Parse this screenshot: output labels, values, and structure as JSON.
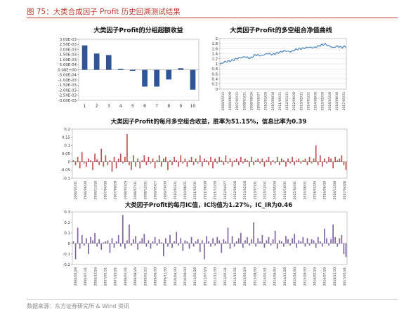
{
  "page": {
    "figure_title": "图 75：大类合成因子 Profit 历史回溯测试结果",
    "source": "数据来源：东方证券研究所 & Wind 资讯"
  },
  "colors": {
    "accent": "#c0392b",
    "bar_blue": "#2f5597",
    "line_blue": "#4a86c5",
    "bar_red": "#c0504d",
    "bar_purple": "#8064a2"
  },
  "chart_data": [
    {
      "id": "decile",
      "type": "bar",
      "title": "大类因子Profit的分组超额收益",
      "categories": [
        "1",
        "2",
        "3",
        "4",
        "5",
        "6",
        "7",
        "8",
        "9",
        "10"
      ],
      "values": [
        0.0024,
        0.0016,
        0.00145,
        0.0001,
        -0.0001,
        -0.00165,
        -0.00165,
        -0.00095,
        0.00015,
        -0.00195
      ],
      "ylim": [
        -0.003,
        0.003
      ],
      "yticks": [
        "3.00E-03",
        "2.50E-03",
        "2.00E-03",
        "1.50E-03",
        "1.00E-03",
        "5.00E-04",
        "0.00E+00",
        "-5.00E-04",
        "-1.00E-03",
        "-1.50E-03",
        "-2.00E-03",
        "-2.50E-03",
        "-3.00E-03"
      ],
      "grid": false
    },
    {
      "id": "nav",
      "type": "line",
      "title": "大类因子Profit的多空组合净值曲线",
      "ylim": [
        0,
        2
      ],
      "yticks": [
        "2",
        "1.8",
        "1.6",
        "1.4",
        "1.2",
        "1",
        "0.8",
        "0.6",
        "0.4",
        "0.2",
        "0"
      ],
      "xticks": [
        "2006/01/31",
        "2006/09/29",
        "2007/05/31",
        "2008/01/31",
        "2008/09/26",
        "2009/05/27",
        "2010/01/29",
        "2010/09/30",
        "2011/05/31",
        "2012/01/31",
        "2012/09/28",
        "2013/05/31",
        "2014/01/31",
        "2014/09/30",
        "2015/05/29",
        "2016/01/29",
        "2016/09/30",
        "2017/05/31"
      ],
      "anchors": [
        [
          0,
          0.99
        ],
        [
          5,
          1.08
        ],
        [
          12,
          1.13
        ],
        [
          18,
          1.23
        ],
        [
          25,
          1.28
        ],
        [
          30,
          1.22
        ],
        [
          35,
          1.36
        ],
        [
          41,
          1.32
        ],
        [
          47,
          1.41
        ],
        [
          52,
          1.37
        ],
        [
          58,
          1.45
        ],
        [
          64,
          1.52
        ],
        [
          70,
          1.48
        ],
        [
          76,
          1.58
        ],
        [
          82,
          1.61
        ],
        [
          88,
          1.66
        ],
        [
          93,
          1.64
        ],
        [
          99,
          1.73
        ],
        [
          104,
          1.78
        ],
        [
          108,
          1.71
        ],
        [
          112,
          1.64
        ],
        [
          116,
          1.7
        ],
        [
          120,
          1.66
        ],
        [
          125,
          1.69
        ]
      ],
      "grid": true
    },
    {
      "id": "monthly",
      "type": "bar",
      "title": "大类因子Profit的每月多空组合收益，胜率为51.15%，信息比率为0.39",
      "ylim": [
        -0.1,
        0.2
      ],
      "yticks": [
        "0.2",
        "0.15",
        "0.1",
        "0.05",
        "0",
        "-0.05",
        "-0.1"
      ],
      "values": [
        0.01,
        -0.02,
        0.03,
        -0.04,
        0.06,
        -0.01,
        -0.03,
        0.02,
        0.01,
        -0.05,
        0.05,
        0.015,
        -0.02,
        0.08,
        -0.03,
        0.04,
        -0.02,
        0.01,
        -0.06,
        0.03,
        -0.04,
        0.02,
        0.05,
        -0.01,
        0.03,
        0.17,
        -0.02,
        -0.05,
        0.04,
        -0.03,
        0.02,
        -0.04,
        0.01,
        0.04,
        -0.02,
        0.03,
        -0.01,
        0.02,
        -0.04,
        0.01,
        0.04,
        -0.03,
        0.02,
        0.03,
        -0.05,
        0.01,
        -0.02,
        0.03,
        0.01,
        -0.03,
        0.04,
        -0.01,
        0.02,
        -0.03,
        0.01,
        0.03,
        -0.02,
        0.02,
        -0.01,
        0.04,
        -0.03,
        0.02,
        0.01,
        -0.02,
        0.03,
        -0.04,
        0.02,
        -0.01,
        0.03,
        0.01,
        -0.02,
        0.04,
        -0.01,
        0.02,
        -0.03,
        0.01,
        0.02,
        -0.02,
        0.03,
        -0.01,
        0.02,
        0.01,
        -0.03,
        0.03,
        -0.02,
        0.01,
        0.02,
        -0.01,
        0.02,
        -0.03,
        0.01,
        0.03,
        -0.02,
        0.01,
        -0.01,
        0.03,
        -0.02,
        0.02,
        0.01,
        -0.03,
        0.02,
        -0.01,
        0.03,
        -0.02,
        0.01,
        0.02,
        -0.01,
        0.01,
        0.02,
        -0.02,
        0.03,
        -0.01,
        0.02,
        0.1,
        -0.02,
        0.04,
        -0.03,
        0.02,
        -0.01,
        0.03,
        0.02,
        -0.04,
        0.03,
        0.01,
        0.02,
        0.04,
        -0.02,
        -0.05
      ],
      "xticks": [
        "2006/01/31",
        "2006/06/30",
        "2006/11/30",
        "2007/04/30",
        "2007/09/28",
        "2008/02/29",
        "2008/07/31",
        "2008/12/31",
        "2009/05/27",
        "2009/10/30",
        "2010/03/31",
        "2010/08/31",
        "2011/01/31",
        "2011/06/30",
        "2011/11/30",
        "2012/04/27",
        "2012/09/28",
        "2013/02/28",
        "2013/07/31",
        "2013/12/31",
        "2014/05/30",
        "2014/10/31",
        "2015/03/31",
        "2015/08/31",
        "2016/01/29",
        "2016/06/30",
        "2016/11/30",
        "2017/04/28"
      ],
      "grid": false
    },
    {
      "id": "ic",
      "type": "bar",
      "title": "大类因子Profit的每月IC值，IC均值为1.27%，IC_IR为0.46",
      "ylim": [
        -0.2,
        0.3
      ],
      "yticks": [
        "0.3",
        "0.2",
        "0.1",
        "0",
        "-0.1",
        "-0.2"
      ],
      "values": [
        0.02,
        -0.15,
        0.15,
        -0.05,
        0.08,
        -0.02,
        0.05,
        -0.1,
        0.06,
        0.03,
        0.1,
        -0.03,
        0.04,
        -0.06,
        0.01,
        0.02,
        0.03,
        -0.09,
        0.05,
        -0.04,
        0.02,
        0.08,
        -0.03,
        0.27,
        -0.05,
        0.03,
        0.18,
        -0.02,
        0.04,
        0.07,
        -0.06,
        0.02,
        0.05,
        0.09,
        -0.03,
        0.03,
        -0.05,
        0.02,
        0.06,
        -0.02,
        0.04,
        0.01,
        -0.12,
        0.05,
        -0.03,
        0.08,
        -0.04,
        0.02,
        0.11,
        -0.02,
        0.05,
        -0.07,
        0.03,
        0.02,
        -0.05,
        0.06,
        -0.03,
        0.02,
        0.04,
        -0.08,
        0.03,
        -0.15,
        0.07,
        0.02,
        -0.03,
        0.05,
        -0.02,
        0.06,
        0.03,
        -0.09,
        0.04,
        0.02,
        0.15,
        -0.05,
        0.07,
        -0.03,
        0.02,
        0.05,
        0.1,
        -0.04,
        0.03,
        0.06,
        -0.02,
        0.04,
        0.2,
        -0.03,
        0.05,
        0.02,
        0.08,
        -0.04,
        0.03,
        0.06,
        -0.02,
        0.04,
        0.12,
        -0.05,
        0.03,
        0.02,
        -0.03,
        0.07,
        0.04,
        -0.02,
        0.05,
        0.09,
        -0.04,
        0.03,
        0.02,
        0.06,
        -0.03,
        0.05,
        -0.02,
        0.04,
        0.03,
        -0.04,
        0.06,
        0.02,
        -0.03,
        0.14,
        0.05,
        -0.02,
        0.04,
        0.18,
        0.06,
        -0.03,
        0.05,
        0.08,
        -0.1,
        -0.13
      ],
      "xticks": [
        "2006/02/28",
        "2006/07/31",
        "2006/12/29",
        "2007/05/31",
        "2007/10/31",
        "2008/03/31",
        "2008/08/29",
        "2009/01/23",
        "2009/06/30",
        "2009/11/30",
        "2010/04/30",
        "2010/09/30",
        "2011/02/28",
        "2011/07/29",
        "2011/12/30",
        "2012/05/31",
        "2012/10/31",
        "2013/03/29",
        "2013/08/30",
        "2014/01/31",
        "2014/06/30",
        "2014/11/28",
        "2015/04/30",
        "2015/09/30",
        "2016/02/29",
        "2016/07/29",
        "2016/12/30",
        "2017/05/31"
      ],
      "grid": false
    }
  ]
}
